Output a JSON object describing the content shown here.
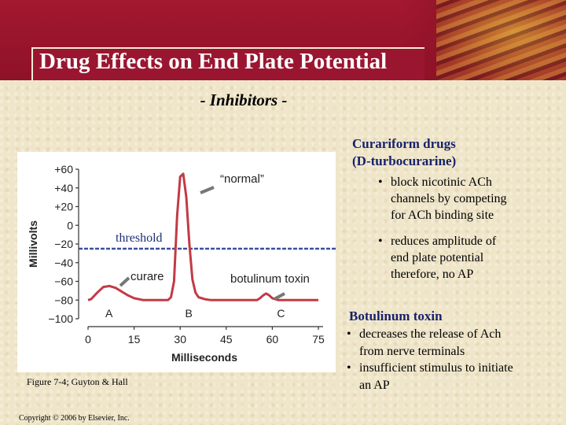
{
  "header": {
    "title": "Drug Effects on End Plate Potential",
    "subtitle": "- Inhibitors -"
  },
  "chart_data": {
    "type": "line",
    "title": "",
    "xlabel": "Milliseconds",
    "ylabel": "Millivolts",
    "x_ticks": [
      0,
      15,
      30,
      45,
      60,
      75
    ],
    "x_tick_labels": [
      "0",
      "15",
      "30",
      "45",
      "60",
      "75"
    ],
    "y_ticks": [
      60,
      40,
      20,
      0,
      -20,
      -40,
      -60,
      -80,
      -100
    ],
    "y_tick_labels": [
      "+60",
      "+40",
      "+20",
      "0",
      "−20",
      "−40",
      "−60",
      "−80",
      "−100"
    ],
    "xlim": [
      0,
      75
    ],
    "ylim": [
      -100,
      60
    ],
    "threshold_mv": -25,
    "series": [
      {
        "name": "membrane potential",
        "x": [
          0,
          1,
          3,
          5,
          7,
          9,
          11,
          13,
          15,
          18,
          21,
          24,
          26,
          27,
          28,
          29,
          30,
          31,
          32,
          33,
          34,
          35,
          36,
          38,
          40,
          45,
          50,
          55,
          56,
          57,
          58,
          59,
          60,
          62,
          64,
          66,
          70,
          75
        ],
        "y": [
          -80,
          -79,
          -72,
          -66,
          -65,
          -67,
          -71,
          -75,
          -78,
          -80,
          -80,
          -80,
          -80,
          -77,
          -60,
          10,
          52,
          55,
          30,
          -20,
          -58,
          -72,
          -77,
          -79,
          -80,
          -80,
          -80,
          -80,
          -78,
          -75,
          -73,
          -75,
          -78,
          -80,
          -80,
          -80,
          -80,
          -80
        ]
      }
    ],
    "point_labels": [
      "A",
      "B",
      "C"
    ],
    "annotations": {
      "normal": "“normal”",
      "threshold": "threshold",
      "curare": "curare",
      "botulinum": "botulinum toxin"
    }
  },
  "curariform": {
    "heading_line1": "Curariform drugs",
    "heading_line2": "(D-turbocurarine)",
    "bullets": [
      [
        "block nicotinic ACh",
        "channels by competing",
        "for ACh binding site"
      ],
      [
        "reduces amplitude of",
        "end plate potential",
        "therefore, no AP"
      ]
    ]
  },
  "botulinum": {
    "heading": "Botulinum toxin",
    "bullets": [
      [
        "decreases the release of Ach",
        "from nerve terminals"
      ],
      [
        "insufficient stimulus to initiate",
        "an AP"
      ]
    ]
  },
  "bullet_char": "•",
  "figure_caption": "Figure 7-4; Guyton & Hall",
  "copyright": "Copyright © 2006 by Elsevier, Inc."
}
